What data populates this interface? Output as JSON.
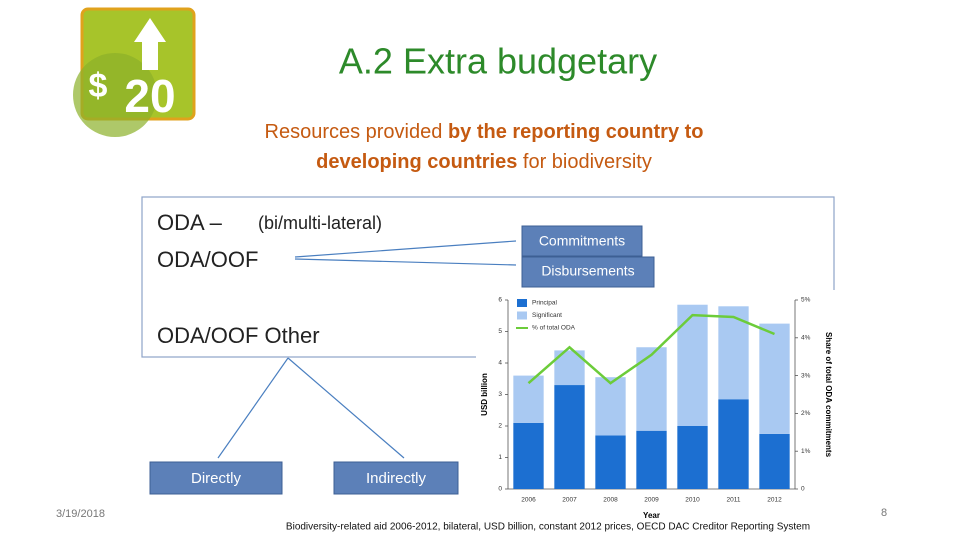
{
  "logo": {
    "symbol": "$",
    "number": "20"
  },
  "header": {
    "title": "A.2 Extra budgetary"
  },
  "subtitle": [
    "Resources provided ",
    "by the reporting country to",
    "developing countries",
    " for biodiversity"
  ],
  "box": {
    "oda": "ODA –",
    "oda_note": "(bi/multi-lateral)",
    "oda_oof": "ODA/OOF",
    "oda_oof_other": "ODA/OOF Other"
  },
  "buttons": {
    "commitments": "Commitments",
    "disbursements": "Disbursements",
    "directly": "Directly",
    "indirectly": "Indirectly"
  },
  "footer": {
    "date": "3/19/2018",
    "page": "8",
    "caption": "Biodiversity-related aid 2006-2012, bilateral, USD billion, constant 2012 prices, OECD DAC Creditor Reporting System"
  },
  "chart": {
    "type": "bar",
    "stacked": true,
    "ylabel": "USD billion",
    "y2label": "Share of total ODA commitments",
    "xlabel": "Year",
    "categories": [
      "2006",
      "2007",
      "2008",
      "2009",
      "2010",
      "2011",
      "2012"
    ],
    "ylim": [
      0,
      6
    ],
    "yticks": [
      0,
      1,
      2,
      3,
      4,
      5,
      6
    ],
    "y2lim": [
      0,
      5
    ],
    "y2ticks": [
      0,
      {
        "value": 1,
        "label": "1%"
      },
      {
        "value": 2,
        "label": "2%"
      },
      {
        "value": 3,
        "label": "3%"
      },
      {
        "value": 4,
        "label": "4%"
      },
      {
        "value": 5,
        "label": "5%"
      }
    ],
    "series": [
      {
        "name": "Principal",
        "type": "bar",
        "color": "#1c6fd1",
        "values": [
          2.1,
          3.3,
          1.7,
          1.85,
          2.0,
          2.85,
          1.75
        ]
      },
      {
        "name": "Significant",
        "type": "bar",
        "color": "#a9c9f2",
        "values": [
          1.5,
          1.1,
          1.85,
          2.65,
          3.85,
          2.95,
          3.5
        ]
      },
      {
        "name": "% of total ODA",
        "type": "line",
        "axis": "y2",
        "color": "#6ccc3a",
        "values": [
          2.8,
          3.75,
          2.8,
          3.55,
          4.6,
          4.55,
          4.1
        ]
      }
    ]
  }
}
